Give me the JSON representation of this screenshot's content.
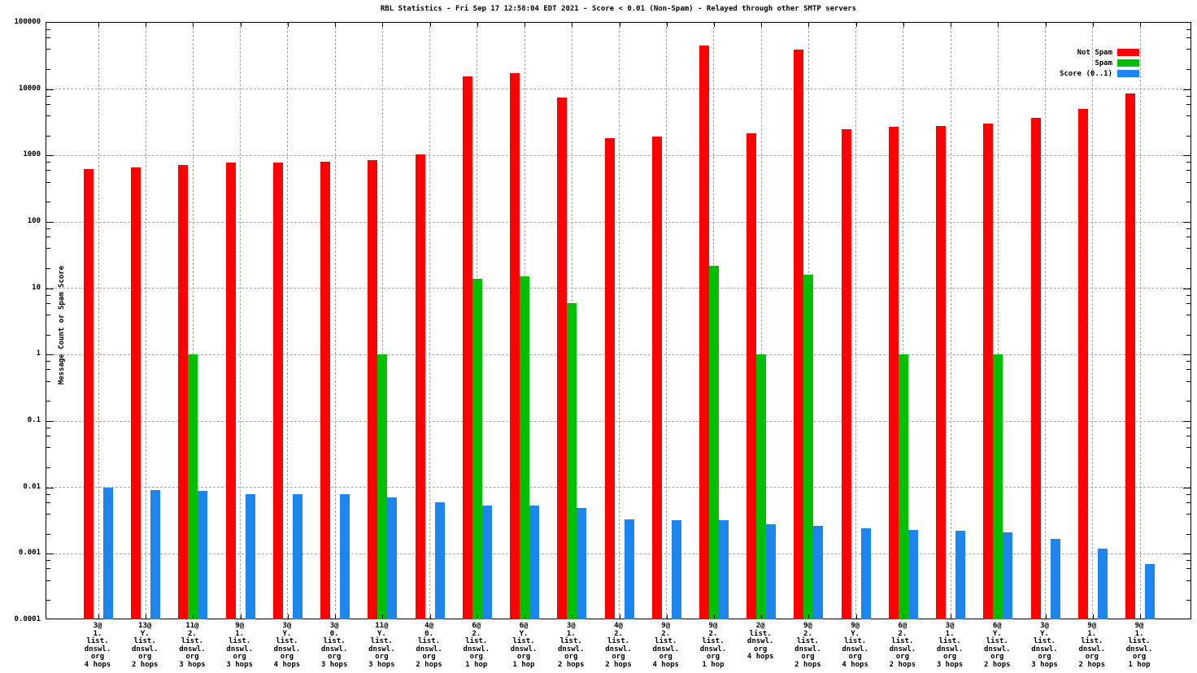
{
  "title": "RBL Statistics - Fri Sep 17 12:58:04 EDT 2021 - Score < 0.01 (Non-Spam) - Relayed through other SMTP servers",
  "chart_data": {
    "type": "bar",
    "yscale": "log",
    "ylabel": "Message Count or Spam Score",
    "ylim": [
      0.0001,
      100000
    ],
    "ytick_labels": [
      "100000",
      "10000",
      "1000",
      "100",
      "10",
      "1",
      "0.1",
      "0.01",
      "0.001",
      "0.0001"
    ],
    "grid": true,
    "legend_position": "top-right-inside",
    "colors": {
      "not_spam": "#ff0000",
      "spam": "#00c000",
      "score": "#1c86ee",
      "grid": "#a8a8a8",
      "axis": "#000000"
    },
    "categories": [
      [
        "3@",
        "1.",
        "list.",
        "dnswl.",
        "org",
        "4 hops"
      ],
      [
        "13@",
        "Y.",
        "list.",
        "dnswl.",
        "org",
        "2 hops"
      ],
      [
        "11@",
        "2.",
        "list.",
        "dnswl.",
        "org",
        "3 hops"
      ],
      [
        "9@",
        "1.",
        "list.",
        "dnswl.",
        "org",
        "3 hops"
      ],
      [
        "3@",
        "Y.",
        "list.",
        "dnswl.",
        "org",
        "4 hops"
      ],
      [
        "3@",
        "0.",
        "list.",
        "dnswl.",
        "org",
        "3 hops"
      ],
      [
        "11@",
        "Y.",
        "list.",
        "dnswl.",
        "org",
        "3 hops"
      ],
      [
        "4@",
        "0.",
        "list.",
        "dnswl.",
        "org",
        "2 hops"
      ],
      [
        "6@",
        "2.",
        "list.",
        "dnswl.",
        "org",
        "1 hop"
      ],
      [
        "6@",
        "Y.",
        "list.",
        "dnswl.",
        "org",
        "1 hop"
      ],
      [
        "3@",
        "1.",
        "list.",
        "dnswl.",
        "org",
        "2 hops"
      ],
      [
        "4@",
        "2.",
        "list.",
        "dnswl.",
        "org",
        "2 hops"
      ],
      [
        "9@",
        "2.",
        "list.",
        "dnswl.",
        "org",
        "4 hops"
      ],
      [
        "9@",
        "2.",
        "list.",
        "dnswl.",
        "org",
        "1 hop"
      ],
      [
        "2@",
        "list.",
        "dnswl.",
        "org",
        "4 hops"
      ],
      [
        "9@",
        "2.",
        "list.",
        "dnswl.",
        "org",
        "2 hops"
      ],
      [
        "9@",
        "Y.",
        "list.",
        "dnswl.",
        "org",
        "4 hops"
      ],
      [
        "6@",
        "2.",
        "list.",
        "dnswl.",
        "org",
        "2 hops"
      ],
      [
        "3@",
        "1.",
        "list.",
        "dnswl.",
        "org",
        "3 hops"
      ],
      [
        "6@",
        "Y.",
        "list.",
        "dnswl.",
        "org",
        "2 hops"
      ],
      [
        "3@",
        "Y.",
        "list.",
        "dnswl.",
        "org",
        "3 hops"
      ],
      [
        "9@",
        "1.",
        "list.",
        "dnswl.",
        "org",
        "2 hops"
      ],
      [
        "9@",
        "1.",
        "list.",
        "dnswl.",
        "org",
        "1 hop"
      ]
    ],
    "series": [
      {
        "name": "Not Spam",
        "color_key": "not_spam",
        "values": [
          620,
          670,
          710,
          775,
          775,
          800,
          860,
          1040,
          15500,
          17300,
          7500,
          1830,
          1940,
          45000,
          2150,
          39000,
          2500,
          2700,
          2750,
          3000,
          3660,
          5000,
          8700
        ]
      },
      {
        "name": "Spam",
        "color_key": "spam",
        "values": [
          null,
          null,
          1,
          null,
          null,
          null,
          1,
          null,
          14,
          15,
          6,
          null,
          null,
          22,
          1,
          16,
          null,
          1,
          null,
          1,
          null,
          null,
          null
        ]
      },
      {
        "name": "Score (0..1)",
        "color_key": "score",
        "values": [
          0.0098,
          0.0092,
          0.0088,
          0.008,
          0.008,
          0.0078,
          0.0071,
          0.006,
          0.0054,
          0.0054,
          0.0049,
          0.0033,
          0.0032,
          0.0032,
          0.0028,
          0.0026,
          0.0024,
          0.0023,
          0.0022,
          0.0021,
          0.0017,
          0.0012,
          0.0007
        ]
      }
    ]
  }
}
